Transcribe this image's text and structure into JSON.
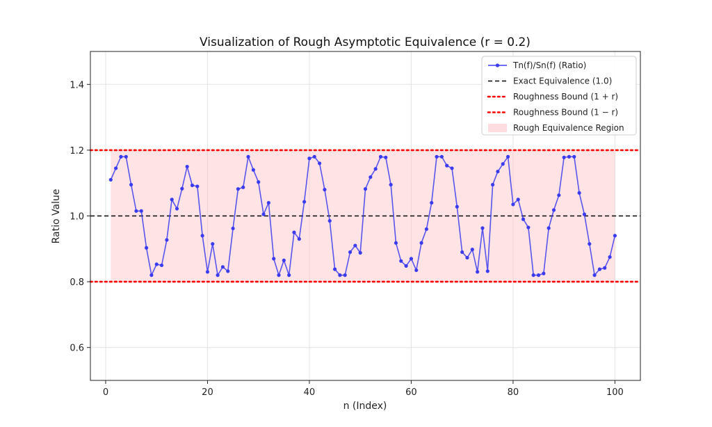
{
  "chart_data": {
    "type": "line",
    "title": "Visualization of Rough Asymptotic Equivalence (r = 0.2)",
    "xlabel": "n (Index)",
    "ylabel": "Ratio Value",
    "xlim": [
      -3,
      105
    ],
    "ylim": [
      0.5,
      1.5
    ],
    "xticks": [
      0,
      20,
      40,
      60,
      80,
      100
    ],
    "yticks": [
      0.6,
      0.8,
      1.0,
      1.2,
      1.4
    ],
    "xtick_labels": [
      "0",
      "20",
      "40",
      "60",
      "80",
      "100"
    ],
    "ytick_labels": [
      "0.6",
      "0.8",
      "1.0",
      "1.2",
      "1.4"
    ],
    "grid": true,
    "legend_position": "top-right",
    "series": [
      {
        "name": "Tn(f)/Sn(f) (Ratio)",
        "style": "line-with-markers",
        "color": "#3b3bf0",
        "x": [
          1,
          2,
          3,
          4,
          5,
          6,
          7,
          8,
          9,
          10,
          11,
          12,
          13,
          14,
          15,
          16,
          17,
          18,
          19,
          20,
          21,
          22,
          23,
          24,
          25,
          26,
          27,
          28,
          29,
          30,
          31,
          32,
          33,
          34,
          35,
          36,
          37,
          38,
          39,
          40,
          41,
          42,
          43,
          44,
          45,
          46,
          47,
          48,
          49,
          50,
          51,
          52,
          53,
          54,
          55,
          56,
          57,
          58,
          59,
          60,
          61,
          62,
          63,
          64,
          65,
          66,
          67,
          68,
          69,
          70,
          71,
          72,
          73,
          74,
          75,
          76,
          77,
          78,
          79,
          80,
          81,
          82,
          83,
          84,
          85,
          86,
          87,
          88,
          89,
          90,
          91,
          92,
          93,
          94,
          95,
          96,
          97,
          98,
          99,
          100
        ],
        "y": [
          1.11,
          1.145,
          1.18,
          1.18,
          1.095,
          1.015,
          1.015,
          0.903,
          0.82,
          0.853,
          0.85,
          0.927,
          1.05,
          1.022,
          1.083,
          1.15,
          1.093,
          1.09,
          0.94,
          0.83,
          0.915,
          0.82,
          0.845,
          0.832,
          0.962,
          1.082,
          1.087,
          1.18,
          1.14,
          1.103,
          1.005,
          1.04,
          0.87,
          0.82,
          0.865,
          0.82,
          0.95,
          0.93,
          1.043,
          1.175,
          1.18,
          1.16,
          1.08,
          0.985,
          0.838,
          0.82,
          0.82,
          0.89,
          0.91,
          0.888,
          1.082,
          1.118,
          1.143,
          1.18,
          1.178,
          1.095,
          0.918,
          0.863,
          0.848,
          0.87,
          0.835,
          0.918,
          0.96,
          1.04,
          1.18,
          1.18,
          1.153,
          1.145,
          1.028,
          0.89,
          0.873,
          0.898,
          0.83,
          0.963,
          0.832,
          1.095,
          1.135,
          1.158,
          1.18,
          1.035,
          1.05,
          0.99,
          0.965,
          0.82,
          0.82,
          0.825,
          0.963,
          1.018,
          1.063,
          1.178,
          1.18,
          1.18,
          1.07,
          1.005,
          0.915,
          0.82,
          0.838,
          0.842,
          0.875,
          0.94
        ]
      },
      {
        "name": "Exact Equivalence (1.0)",
        "style": "dashed",
        "color": "#000000",
        "value": 1.0
      },
      {
        "name": "Roughness Bound (1 + r)",
        "style": "dotted",
        "color": "#ff0000",
        "value": 1.2
      },
      {
        "name": "Roughness Bound (1 − r)",
        "style": "dotted",
        "color": "#ff0000",
        "value": 0.8
      },
      {
        "name": "Rough Equivalence Region",
        "style": "band",
        "color": "#ffc0c6",
        "range": [
          0.8,
          1.2
        ],
        "x_range": [
          1,
          100
        ]
      }
    ]
  }
}
